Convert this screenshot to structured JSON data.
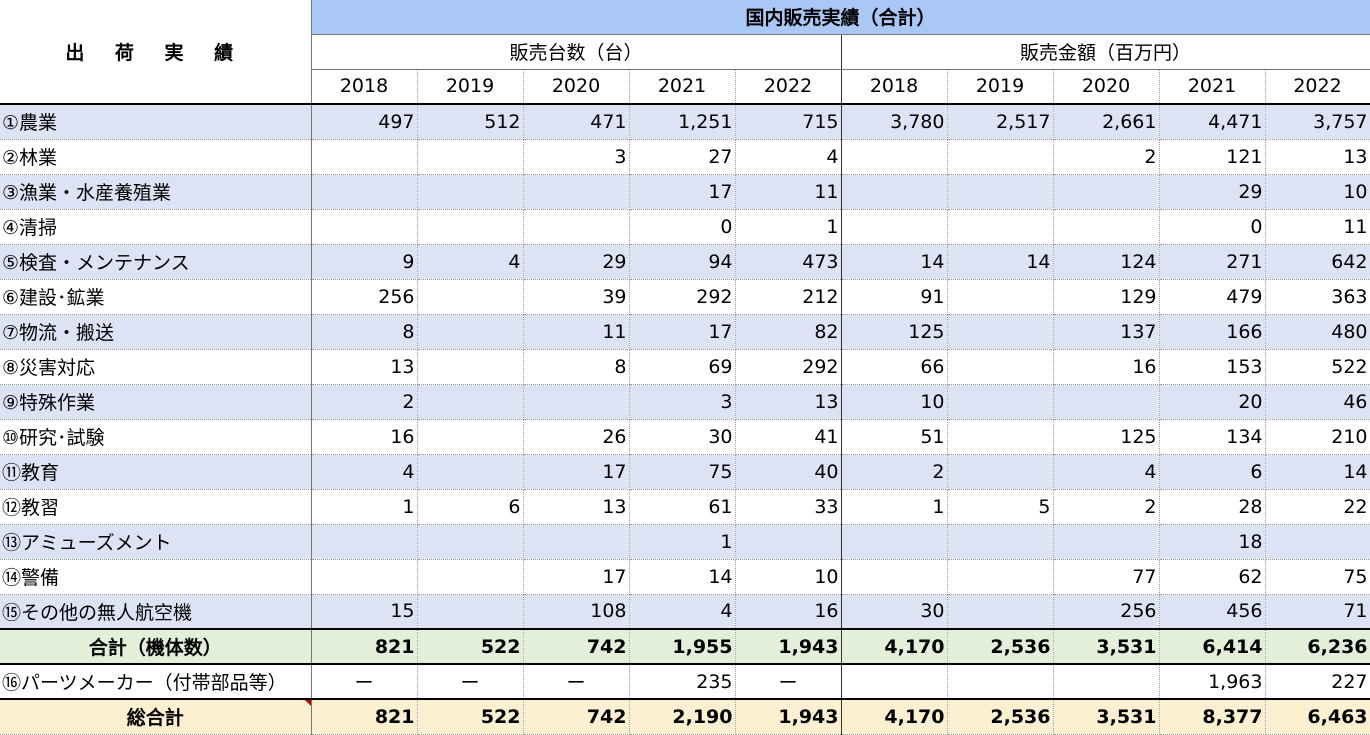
{
  "title": "出 荷 実 績",
  "group_header": "国内販売実績（合計）",
  "sub_headers": {
    "units": "販売台数（台）",
    "amount": "販売金額（百万円）"
  },
  "years": [
    "2018",
    "2019",
    "2020",
    "2021",
    "2022"
  ],
  "rows": [
    {
      "label": "①農業",
      "units": [
        "497",
        "512",
        "471",
        "1,251",
        "715"
      ],
      "amount": [
        "3,780",
        "2,517",
        "2,661",
        "4,471",
        "3,757"
      ]
    },
    {
      "label": "②林業",
      "units": [
        "",
        "",
        "3",
        "27",
        "4"
      ],
      "amount": [
        "",
        "",
        "2",
        "121",
        "13"
      ]
    },
    {
      "label": "③漁業・水産養殖業",
      "units": [
        "",
        "",
        "",
        "17",
        "11"
      ],
      "amount": [
        "",
        "",
        "",
        "29",
        "10"
      ]
    },
    {
      "label": "④清掃",
      "units": [
        "",
        "",
        "",
        "0",
        "1"
      ],
      "amount": [
        "",
        "",
        "",
        "0",
        "11"
      ]
    },
    {
      "label": "⑤検査・メンテナンス",
      "units": [
        "9",
        "4",
        "29",
        "94",
        "473"
      ],
      "amount": [
        "14",
        "14",
        "124",
        "271",
        "642"
      ]
    },
    {
      "label": "⑥建設･鉱業",
      "units": [
        "256",
        "",
        "39",
        "292",
        "212"
      ],
      "amount": [
        "91",
        "",
        "129",
        "479",
        "363"
      ]
    },
    {
      "label": "⑦物流・搬送",
      "units": [
        "8",
        "",
        "11",
        "17",
        "82"
      ],
      "amount": [
        "125",
        "",
        "137",
        "166",
        "480"
      ]
    },
    {
      "label": "⑧災害対応",
      "units": [
        "13",
        "",
        "8",
        "69",
        "292"
      ],
      "amount": [
        "66",
        "",
        "16",
        "153",
        "522"
      ]
    },
    {
      "label": "⑨特殊作業",
      "units": [
        "2",
        "",
        "",
        "3",
        "13"
      ],
      "amount": [
        "10",
        "",
        "",
        "20",
        "46"
      ]
    },
    {
      "label": "⑩研究･試験",
      "units": [
        "16",
        "",
        "26",
        "30",
        "41"
      ],
      "amount": [
        "51",
        "",
        "125",
        "134",
        "210"
      ]
    },
    {
      "label": "⑪教育",
      "units": [
        "4",
        "",
        "17",
        "75",
        "40"
      ],
      "amount": [
        "2",
        "",
        "4",
        "6",
        "14"
      ]
    },
    {
      "label": "⑫教習",
      "units": [
        "1",
        "6",
        "13",
        "61",
        "33"
      ],
      "amount": [
        "1",
        "5",
        "2",
        "28",
        "22"
      ]
    },
    {
      "label": "⑬アミューズメント",
      "units": [
        "",
        "",
        "",
        "1",
        ""
      ],
      "amount": [
        "",
        "",
        "",
        "18",
        ""
      ]
    },
    {
      "label": "⑭警備",
      "units": [
        "",
        "",
        "17",
        "14",
        "10"
      ],
      "amount": [
        "",
        "",
        "77",
        "62",
        "75"
      ]
    },
    {
      "label": "⑮その他の無人航空機",
      "units": [
        "15",
        "",
        "108",
        "4",
        "16"
      ],
      "amount": [
        "30",
        "",
        "256",
        "456",
        "71"
      ]
    }
  ],
  "total": {
    "label": "合計（機体数）",
    "units": [
      "821",
      "522",
      "742",
      "1,955",
      "1,943"
    ],
    "amount": [
      "4,170",
      "2,536",
      "3,531",
      "6,414",
      "6,236"
    ]
  },
  "parts": {
    "label": "⑯パーツメーカー（付帯部品等）",
    "units": [
      "ー",
      "ー",
      "ー",
      "235",
      "ー"
    ],
    "amount": [
      "",
      "",
      "",
      "1,963",
      "227"
    ]
  },
  "grand_total": {
    "label": "総合計",
    "units": [
      "821",
      "522",
      "742",
      "2,190",
      "1,943"
    ],
    "amount": [
      "4,170",
      "2,536",
      "3,531",
      "8,377",
      "6,463"
    ]
  },
  "colors": {
    "header_blue": "#a9c8f5",
    "row_shade": "#dde3f5",
    "total_green": "#e3efd8",
    "grand_yellow": "#fdf0d0"
  }
}
